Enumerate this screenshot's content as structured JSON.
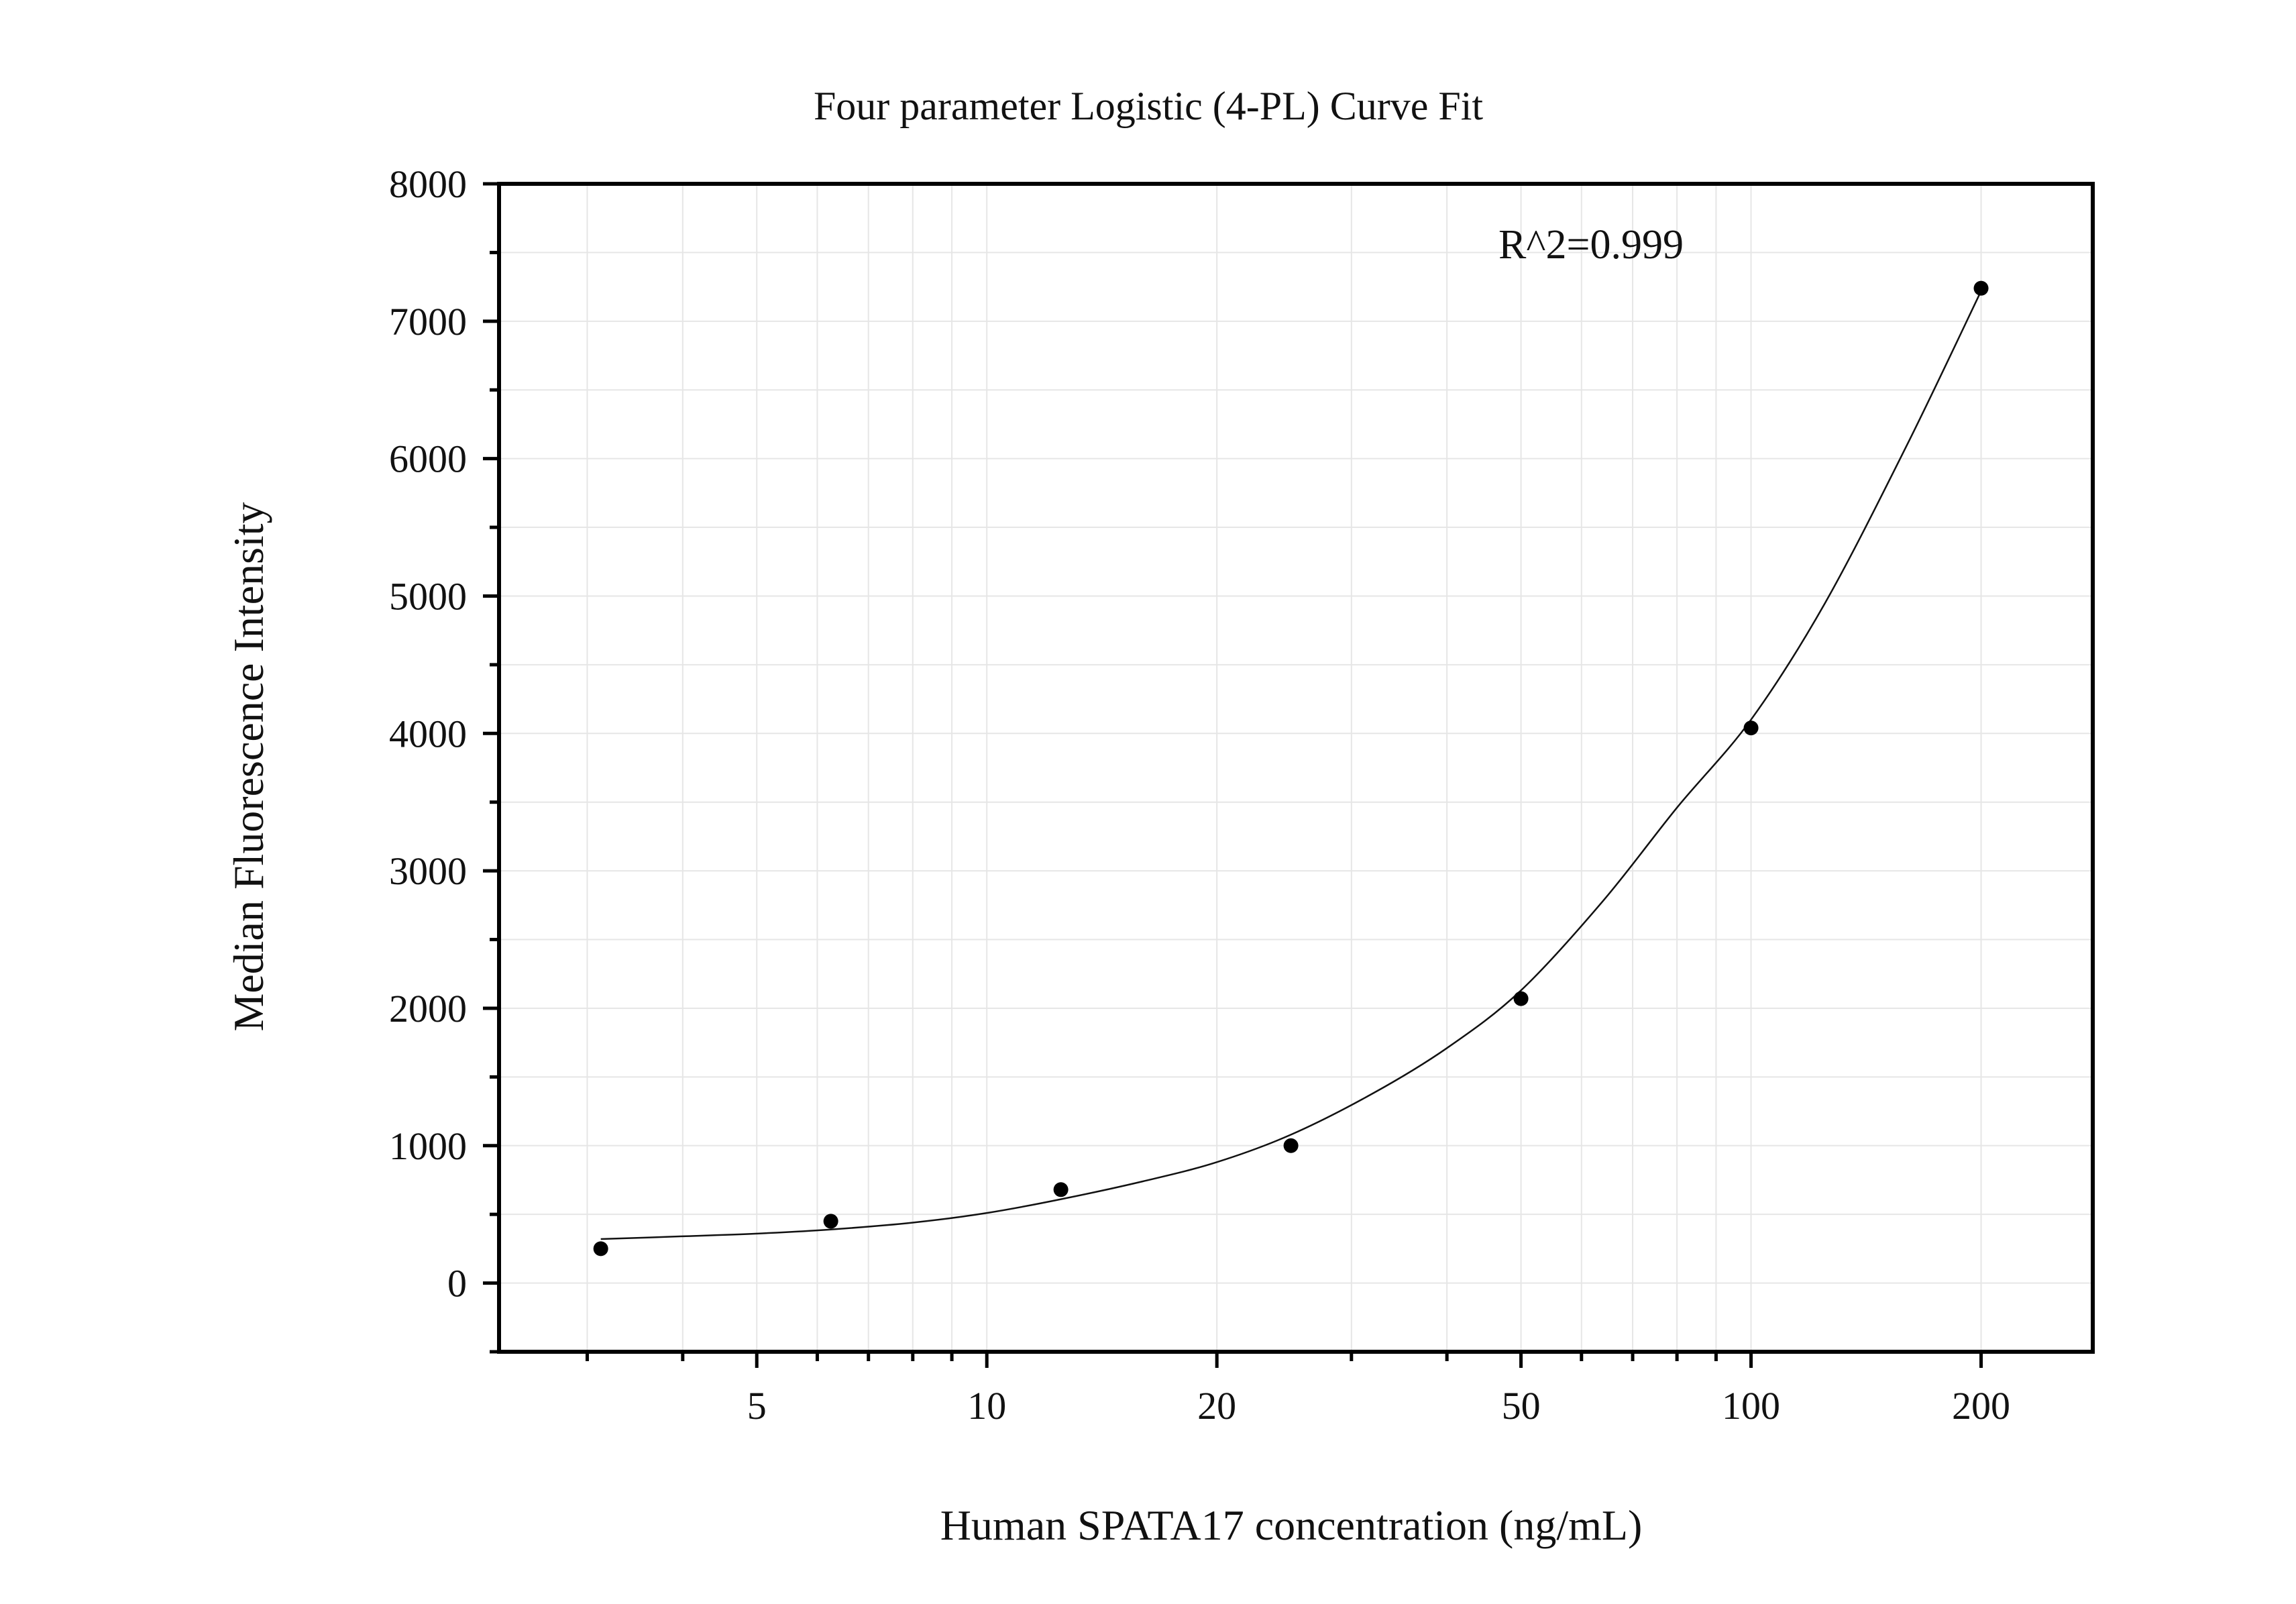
{
  "chart_data": {
    "type": "scatter",
    "title": "Four parameter Logistic (4-PL) Curve Fit",
    "xlabel": "Human SPATA17 concentration (ng/mL)",
    "ylabel": "Median Fluorescence Intensity",
    "x_scale": "log",
    "xlim": [
      2.3,
      280
    ],
    "ylim": [
      -500,
      8000
    ],
    "x_ticks": [
      5,
      10,
      20,
      50,
      100,
      200
    ],
    "x_tick_labels": [
      "5",
      "10",
      "20",
      "50",
      "100",
      "200"
    ],
    "y_ticks": [
      0,
      1000,
      2000,
      3000,
      4000,
      5000,
      6000,
      7000,
      8000
    ],
    "y_tick_labels": [
      "0",
      "1000",
      "2000",
      "3000",
      "4000",
      "5000",
      "6000",
      "7000",
      "8000"
    ],
    "grid": true,
    "annotation": "R^2=0.999",
    "points": [
      {
        "x": 3.125,
        "y": 250
      },
      {
        "x": 6.25,
        "y": 450
      },
      {
        "x": 12.5,
        "y": 680
      },
      {
        "x": 25,
        "y": 1000
      },
      {
        "x": 50,
        "y": 2070
      },
      {
        "x": 100,
        "y": 4040
      },
      {
        "x": 200,
        "y": 7240
      }
    ],
    "fit_curve": [
      {
        "x": 3.125,
        "y": 320
      },
      {
        "x": 4,
        "y": 340
      },
      {
        "x": 5,
        "y": 360
      },
      {
        "x": 6.25,
        "y": 390
      },
      {
        "x": 8,
        "y": 440
      },
      {
        "x": 10,
        "y": 510
      },
      {
        "x": 12.5,
        "y": 610
      },
      {
        "x": 16,
        "y": 740
      },
      {
        "x": 20,
        "y": 880
      },
      {
        "x": 25,
        "y": 1080
      },
      {
        "x": 32,
        "y": 1380
      },
      {
        "x": 40,
        "y": 1710
      },
      {
        "x": 50,
        "y": 2130
      },
      {
        "x": 64,
        "y": 2780
      },
      {
        "x": 80,
        "y": 3460
      },
      {
        "x": 100,
        "y": 4100
      },
      {
        "x": 125,
        "y": 4950
      },
      {
        "x": 160,
        "y": 6100
      },
      {
        "x": 200,
        "y": 7220
      }
    ]
  }
}
